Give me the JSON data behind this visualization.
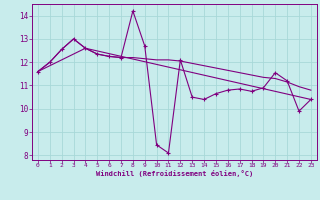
{
  "xlabel": "Windchill (Refroidissement éolien,°C)",
  "background_color": "#c8ecec",
  "line_color": "#800080",
  "grid_color": "#a8d8d8",
  "ylim": [
    7.8,
    14.5
  ],
  "xlim": [
    -0.5,
    23.5
  ],
  "yticks": [
    8,
    9,
    10,
    11,
    12,
    13,
    14
  ],
  "xticks": [
    0,
    1,
    2,
    3,
    4,
    5,
    6,
    7,
    8,
    9,
    10,
    11,
    12,
    13,
    14,
    15,
    16,
    17,
    18,
    19,
    20,
    21,
    22,
    23
  ],
  "series1_x": [
    0,
    1,
    2,
    3,
    4,
    5,
    6,
    7,
    8,
    9,
    10,
    11,
    12,
    13,
    14,
    15,
    16,
    17,
    18,
    19,
    20,
    21,
    22,
    23
  ],
  "series1_y": [
    11.6,
    12.0,
    12.55,
    13.0,
    12.6,
    12.35,
    12.25,
    12.2,
    14.2,
    12.7,
    8.45,
    8.1,
    12.1,
    10.5,
    10.4,
    10.65,
    10.8,
    10.85,
    10.75,
    10.9,
    11.55,
    11.2,
    9.9,
    10.4
  ],
  "series2_x": [
    0,
    1,
    2,
    3,
    4,
    5,
    6,
    7,
    8,
    9,
    10,
    11,
    12,
    13,
    14,
    15,
    16,
    17,
    18,
    19,
    20,
    21,
    22,
    23
  ],
  "series2_y": [
    11.6,
    12.0,
    12.55,
    13.0,
    12.6,
    12.35,
    12.25,
    12.2,
    12.2,
    12.15,
    12.1,
    12.1,
    12.05,
    11.95,
    11.85,
    11.75,
    11.65,
    11.55,
    11.45,
    11.35,
    11.3,
    11.15,
    10.95,
    10.8
  ],
  "series3_x": [
    0,
    4,
    23
  ],
  "series3_y": [
    11.6,
    12.6,
    10.4
  ]
}
